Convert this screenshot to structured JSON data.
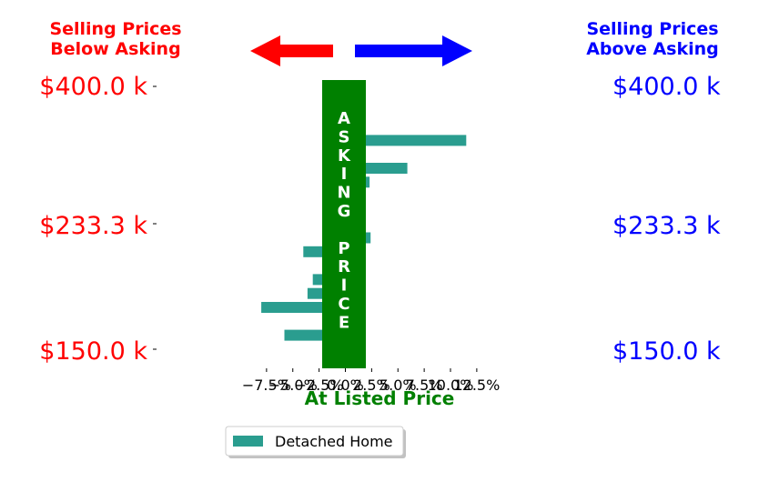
{
  "header": {
    "left_line1": "Selling Prices",
    "left_line2": "Below Asking",
    "right_line1": "Selling Prices",
    "right_line2": "Above Asking"
  },
  "colors": {
    "below": "#ff0000",
    "above": "#0000ff",
    "bar": "#2a9d8f",
    "asking": "#008000"
  },
  "chart_data": {
    "type": "bar",
    "orientation": "horizontal",
    "xlabel": "At Listed Price",
    "xlim": [
      -8.8,
      12.8
    ],
    "xticks": [
      -7.5,
      -5.0,
      -2.5,
      0.0,
      2.5,
      5.0,
      7.5,
      10.0,
      12.5
    ],
    "xtick_labels": [
      "−7.5%",
      "−5.0%",
      "−2.5%",
      "0.0%",
      "2.5%",
      "5.0%",
      "7.5%",
      "10.0%",
      "12.5%"
    ],
    "y_tick_labels": [
      "$400.0 k",
      "$233.3 k",
      "$150.0 k"
    ],
    "asking_band_label": [
      "A",
      "S",
      "K",
      "I",
      "N",
      "G",
      "",
      "P",
      "R",
      "I",
      "C",
      "E"
    ],
    "series": [
      {
        "name": "Detached Home",
        "values": [
          1.1,
          1.1,
          1.1,
          11.5,
          1.1,
          5.9,
          2.3,
          -1.3,
          -1.9,
          -1.9,
          2.4,
          -4.0,
          -2.1,
          -3.1,
          -3.6,
          -8.0,
          1.1,
          -5.8
        ]
      }
    ],
    "legend": {
      "position": "bottom-center",
      "entries": [
        "Detached Home"
      ]
    },
    "grid": false
  }
}
